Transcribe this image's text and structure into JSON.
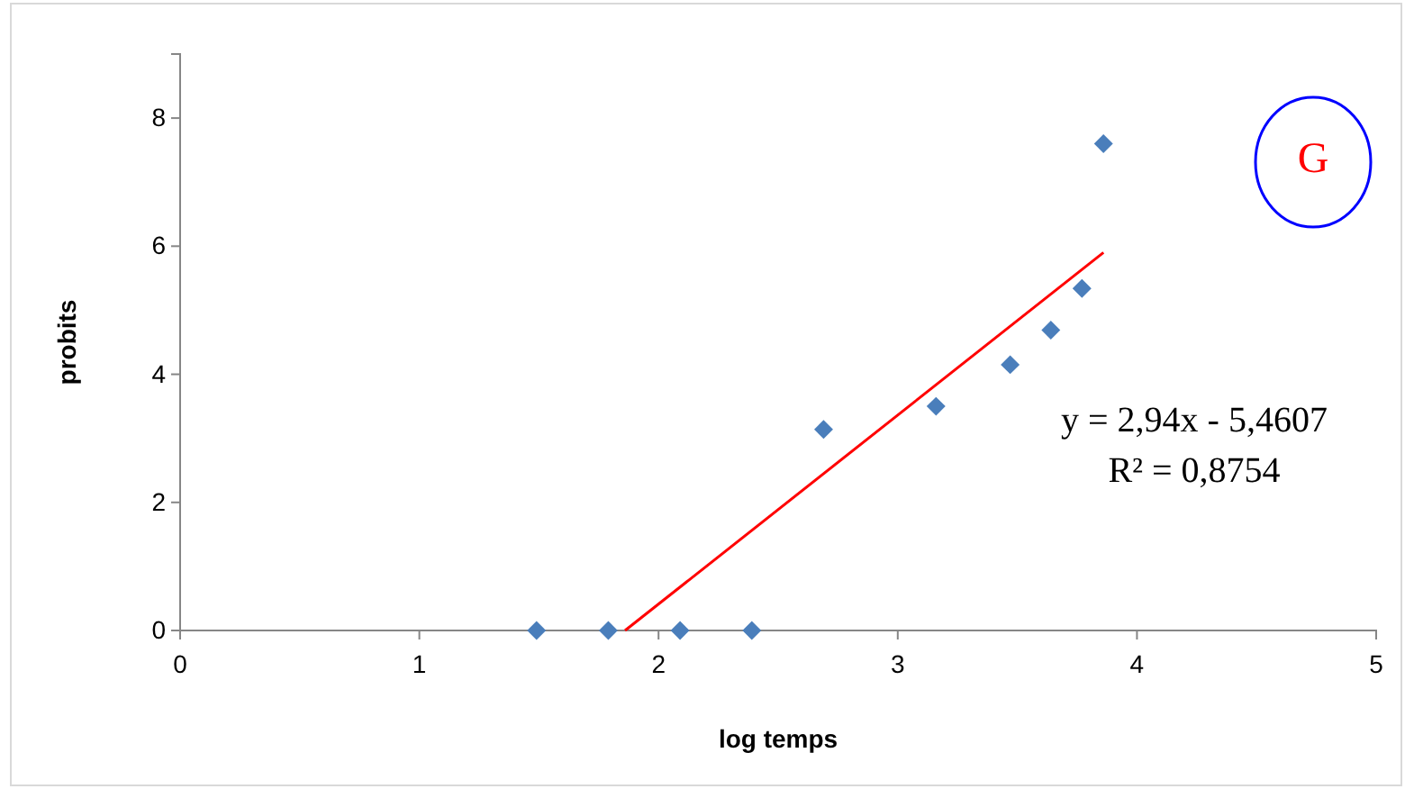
{
  "chart_data": {
    "type": "scatter",
    "xlabel": "log temps",
    "ylabel": "probits",
    "xlim": [
      0,
      5
    ],
    "xticks": [
      0,
      1,
      2,
      3,
      4,
      5
    ],
    "ylim": [
      0,
      9
    ],
    "yticks": [
      0,
      2,
      4,
      6,
      8
    ],
    "grid": false,
    "series": [
      {
        "marker": "diamond",
        "color": "#4a7ebb",
        "x": [
          1.49,
          1.79,
          2.09,
          2.39,
          2.69,
          3.16,
          3.47,
          3.64,
          3.77,
          3.86
        ],
        "values": [
          0,
          0,
          0,
          0,
          3.14,
          3.5,
          4.15,
          4.69,
          5.34,
          7.6
        ]
      },
      {
        "type": "line",
        "color": "#ff0000",
        "x": [
          1.86,
          3.86
        ],
        "values": [
          0,
          5.9
        ]
      }
    ],
    "annotations": [
      "y = 2,94x - 5,4607",
      "R² = 0,8754",
      "G"
    ]
  }
}
